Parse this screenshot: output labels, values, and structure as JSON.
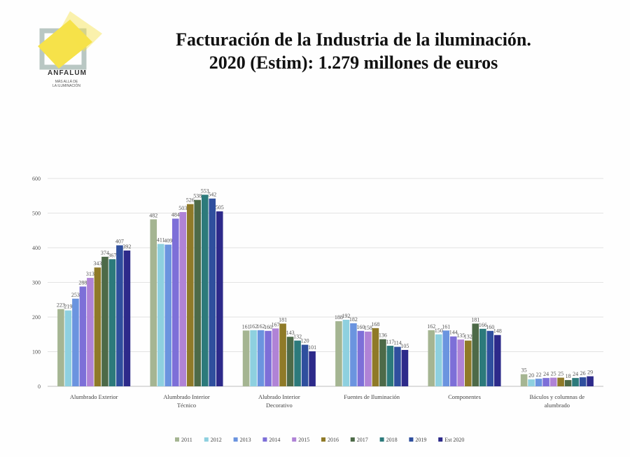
{
  "header": {
    "title_line1": "Facturación de la Industria de la iluminación.",
    "title_line2": "2020 (Estim): 1.279 millones de euros"
  },
  "logo": {
    "name": "ANFALUM",
    "tagline_line1": "MÁS ALLÁ DE",
    "tagline_line2": "LA ILUMINACIÓN",
    "colors": {
      "yellow": "#f6e24a",
      "frame": "#b9c7c3"
    }
  },
  "chart_data": {
    "type": "bar",
    "yticks": [
      0,
      100,
      200,
      300,
      400,
      500,
      600
    ],
    "ylim": [
      0,
      600
    ],
    "grid": true,
    "legend_position": "bottom",
    "categories": [
      [
        "Alumbrado Exterior"
      ],
      [
        "Alumbrado Interior",
        "Técnico"
      ],
      [
        "Alubrado Interior",
        "Decorativo"
      ],
      [
        "Fuentes de Iluminación"
      ],
      [
        "Componentes"
      ],
      [
        "Báculos y columnas de",
        "alumbrado"
      ]
    ],
    "series": [
      {
        "name": "2011",
        "color": "#a5b592",
        "values": [
          223,
          482,
          161,
          188,
          162,
          35
        ]
      },
      {
        "name": "2012",
        "color": "#8ed0df",
        "values": [
          219,
          411,
          162,
          192,
          150,
          20
        ]
      },
      {
        "name": "2013",
        "color": "#6b94df",
        "values": [
          253,
          409,
          162,
          182,
          161,
          22
        ]
      },
      {
        "name": "2014",
        "color": "#7d6fd8",
        "values": [
          288,
          484,
          160,
          160,
          144,
          24
        ]
      },
      {
        "name": "2015",
        "color": "#b083d6",
        "values": [
          313,
          503,
          167,
          158,
          135,
          25
        ]
      },
      {
        "name": "2016",
        "color": "#8f7a28",
        "values": [
          343,
          526,
          181,
          168,
          132,
          25
        ]
      },
      {
        "name": "2017",
        "color": "#4d6a48",
        "values": [
          374,
          538,
          143,
          136,
          181,
          18
        ]
      },
      {
        "name": "2018",
        "color": "#2c7a7b",
        "values": [
          367,
          553,
          132,
          117,
          166,
          24
        ]
      },
      {
        "name": "2019",
        "color": "#2f4f9e",
        "values": [
          407,
          542,
          120,
          114,
          160,
          26
        ]
      },
      {
        "name": "Est 2020",
        "color": "#2d2a8a",
        "values": [
          392,
          505,
          101,
          105,
          148,
          29
        ]
      }
    ]
  }
}
